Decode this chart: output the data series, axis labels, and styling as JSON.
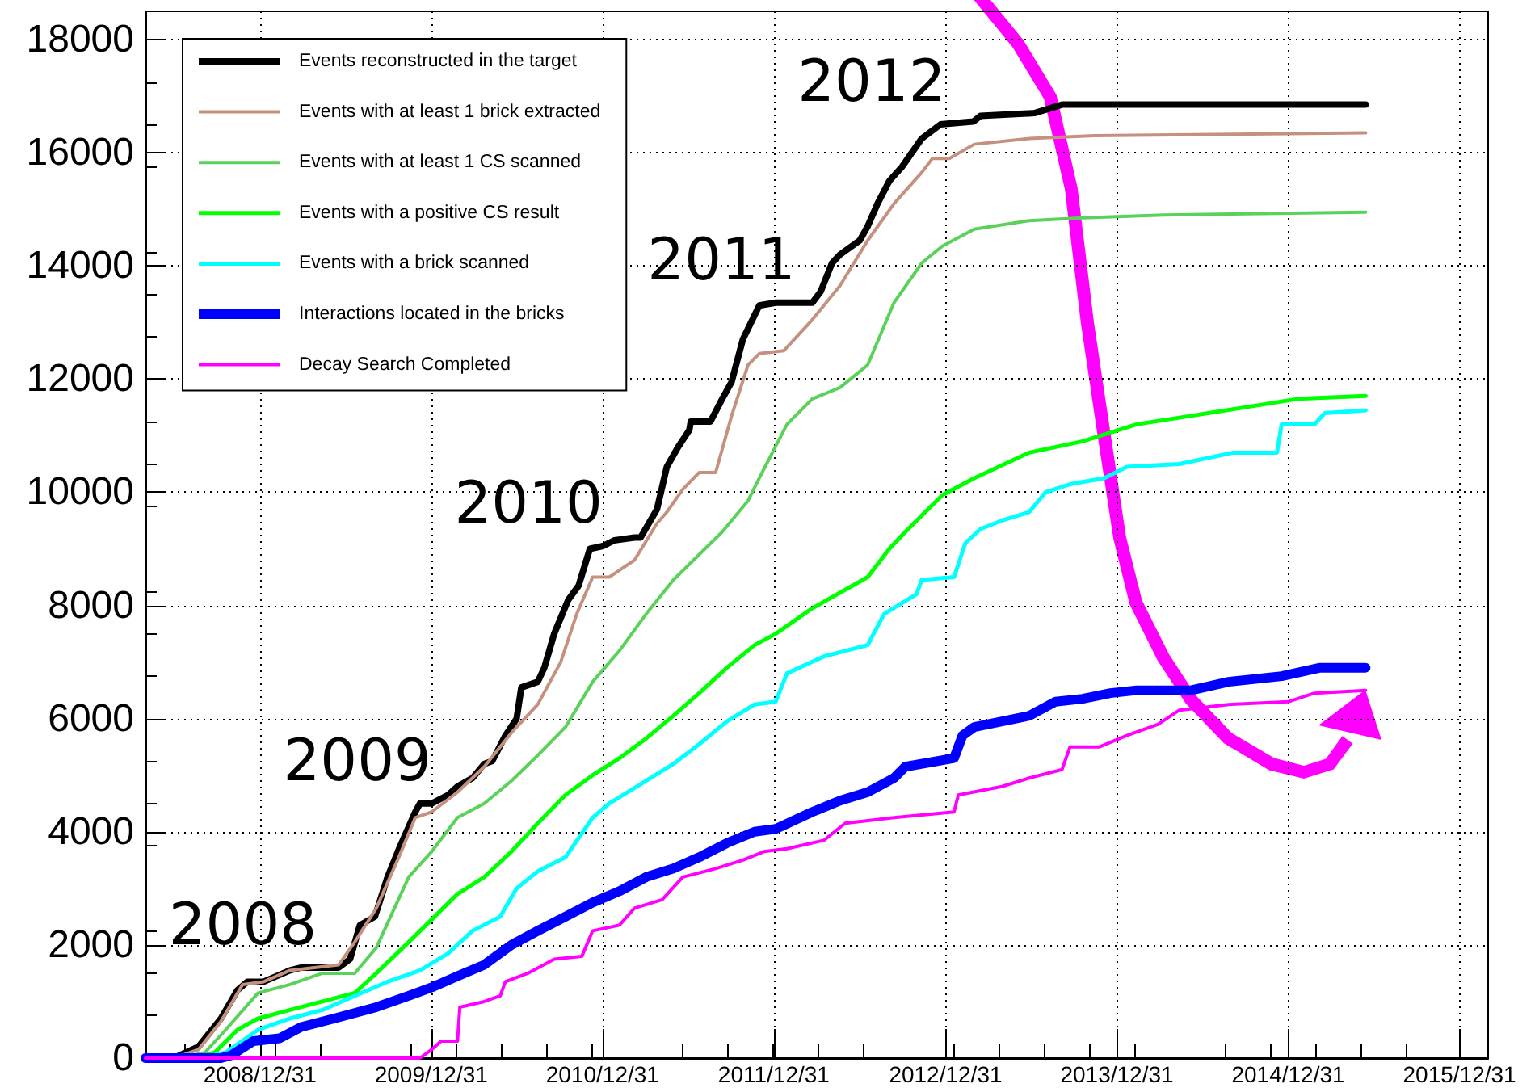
{
  "chart_data": {
    "type": "line",
    "xlim": [
      "2008-05-01",
      "2016-03-01"
    ],
    "xticks": [
      {
        "value": "2008-12-31",
        "label": "2008/12/31"
      },
      {
        "value": "2009-12-31",
        "label": "2009/12/31"
      },
      {
        "value": "2010-12-31",
        "label": "2010/12/31"
      },
      {
        "value": "2011-12-31",
        "label": "2011/12/31"
      },
      {
        "value": "2012-12-31",
        "label": "2012/12/31"
      },
      {
        "value": "2013-12-31",
        "label": "2013/12/31"
      },
      {
        "value": "2014-12-31",
        "label": "2014/12/31"
      },
      {
        "value": "2015-12-31",
        "label": "2015/12/31"
      }
    ],
    "ylim": [
      0,
      18500
    ],
    "yticks": [
      0,
      2000,
      4000,
      6000,
      8000,
      10000,
      12000,
      14000,
      16000,
      18000
    ],
    "grid": true,
    "legend": "top left",
    "annotations": [
      {
        "text": "2008",
        "x": "2009-05-01",
        "y": 1600
      },
      {
        "text": "2009",
        "x": "2009-12-31",
        "y": 4500
      },
      {
        "text": "2010",
        "x": "2010-12-31",
        "y": 9050
      },
      {
        "text": "2011",
        "x": "2012-02-15",
        "y": 13350
      },
      {
        "text": "2012",
        "x": "2012-12-31",
        "y": 16500
      }
    ],
    "series": [
      {
        "name": "Events reconstructed in the target",
        "color": "#000000",
        "x": [
          "2008-05-01",
          "2008-07-01",
          "2008-08-22",
          "2008-10-09",
          "2008-11-13",
          "2008-12-04",
          "2009-01-08",
          "2009-03-05",
          "2009-03-29",
          "2009-06-17",
          "2009-07-11",
          "2009-08-01",
          "2009-09-02",
          "2009-09-29",
          "2009-10-26",
          "2009-11-27",
          "2009-12-07",
          "2010-01-01",
          "2010-02-05",
          "2010-02-25",
          "2010-03-29",
          "2010-04-23",
          "2010-05-10",
          "2010-06-07",
          "2010-07-01",
          "2010-07-11",
          "2010-08-15",
          "2010-08-29",
          "2010-09-19",
          "2010-10-19",
          "2010-11-10",
          "2010-12-04",
          "2011-01-01",
          "2011-01-25",
          "2011-03-09",
          "2011-03-22",
          "2011-04-26",
          "2011-05-17",
          "2011-06-10",
          "2011-07-04",
          "2011-07-07",
          "2011-08-18",
          "2011-09-12",
          "2011-10-02",
          "2011-10-26",
          "2011-11-30",
          "2012-01-04",
          "2012-03-22",
          "2012-04-09",
          "2012-05-03",
          "2012-05-20",
          "2012-07-01",
          "2012-07-18",
          "2012-08-08",
          "2012-09-02",
          "2012-09-29",
          "2012-11-10",
          "2012-12-20",
          "2013-02-28",
          "2013-03-15",
          "2013-07-08",
          "2013-09-05",
          "2015-06-14"
        ],
        "values": [
          0,
          0,
          200,
          700,
          1200,
          1350,
          1350,
          1550,
          1600,
          1600,
          1750,
          2350,
          2500,
          3200,
          3750,
          4350,
          4500,
          4500,
          4650,
          4800,
          4950,
          5200,
          5250,
          5700,
          6000,
          6550,
          6650,
          6900,
          7500,
          8100,
          8350,
          9000,
          9050,
          9150,
          9200,
          9200,
          9700,
          10450,
          10800,
          11100,
          11250,
          11250,
          11650,
          11950,
          12700,
          13300,
          13350,
          13350,
          13550,
          14050,
          14200,
          14450,
          14700,
          15100,
          15500,
          15750,
          16250,
          16500,
          16550,
          16650,
          16700,
          16850,
          16850
        ]
      },
      {
        "name": "Events with at least 1 brick extracted",
        "color": "#c4917f",
        "x": [
          "2008-05-01",
          "2008-07-01",
          "2008-08-22",
          "2008-10-09",
          "2008-11-24",
          "2009-01-08",
          "2009-03-05",
          "2009-06-17",
          "2009-07-21",
          "2009-09-05",
          "2009-10-23",
          "2009-11-27",
          "2010-01-01",
          "2010-02-25",
          "2010-04-23",
          "2010-06-20",
          "2010-08-15",
          "2010-10-03",
          "2010-11-06",
          "2010-12-10",
          "2011-01-14",
          "2011-03-09",
          "2011-04-26",
          "2011-05-17",
          "2011-06-20",
          "2011-07-25",
          "2011-08-29",
          "2011-10-02",
          "2011-11-06",
          "2011-11-30",
          "2012-01-21",
          "2012-03-22",
          "2012-05-20",
          "2012-07-18",
          "2012-09-12",
          "2012-11-10",
          "2012-12-03",
          "2013-01-08",
          "2013-03-02",
          "2013-06-27",
          "2013-11-13",
          "2015-06-14"
        ],
        "values": [
          0,
          0,
          150,
          650,
          1300,
          1350,
          1550,
          1650,
          2050,
          2650,
          3550,
          4250,
          4350,
          4700,
          5150,
          5750,
          6250,
          7000,
          7850,
          8500,
          8500,
          8800,
          9450,
          9650,
          10050,
          10350,
          10350,
          11350,
          12250,
          12450,
          12500,
          13050,
          13650,
          14450,
          15100,
          15650,
          15900,
          15900,
          16150,
          16250,
          16300,
          16350
        ]
      },
      {
        "name": "Events with at least 1 CS scanned",
        "color": "#5ad25a",
        "x": [
          "2008-05-01",
          "2008-07-15",
          "2008-09-05",
          "2008-10-19",
          "2008-12-27",
          "2009-03-05",
          "2009-05-13",
          "2009-07-21",
          "2009-09-05",
          "2009-11-13",
          "2010-01-01",
          "2010-02-25",
          "2010-04-23",
          "2010-06-20",
          "2010-08-15",
          "2010-10-13",
          "2010-12-10",
          "2011-02-05",
          "2011-04-03",
          "2011-05-31",
          "2011-07-25",
          "2011-09-12",
          "2011-11-06",
          "2011-11-30",
          "2012-01-28",
          "2012-03-22",
          "2012-05-20",
          "2012-07-18",
          "2012-09-12",
          "2012-11-10",
          "2012-12-24",
          "2013-03-02",
          "2013-06-27",
          "2013-10-19",
          "2014-04-09",
          "2015-06-14"
        ],
        "values": [
          0,
          0,
          100,
          500,
          1150,
          1300,
          1500,
          1500,
          1950,
          3200,
          3650,
          4250,
          4500,
          4900,
          5350,
          5850,
          6650,
          7200,
          7850,
          8450,
          8900,
          9300,
          9850,
          10250,
          11200,
          11650,
          11850,
          12250,
          13350,
          14050,
          14350,
          14650,
          14800,
          14850,
          14900,
          14950
        ]
      },
      {
        "name": "Events with a positive CS result",
        "color": "#00ff00",
        "x": [
          "2008-05-01",
          "2008-08-11",
          "2008-09-26",
          "2008-11-13",
          "2008-12-27",
          "2009-03-05",
          "2009-05-13",
          "2009-07-21",
          "2009-09-05",
          "2009-11-13",
          "2010-01-01",
          "2010-02-25",
          "2010-04-23",
          "2010-06-20",
          "2010-08-15",
          "2010-10-13",
          "2010-12-10",
          "2011-02-05",
          "2011-04-03",
          "2011-05-31",
          "2011-07-25",
          "2011-09-22",
          "2011-11-20",
          "2012-01-04",
          "2012-03-22",
          "2012-07-18",
          "2012-09-02",
          "2012-10-06",
          "2012-12-24",
          "2013-03-02",
          "2013-06-27",
          "2013-10-19",
          "2014-02-11",
          "2014-06-07",
          "2014-09-29",
          "2015-01-21",
          "2015-06-14"
        ],
        "values": [
          0,
          0,
          100,
          500,
          700,
          850,
          1000,
          1150,
          1500,
          2050,
          2450,
          2900,
          3200,
          3650,
          4150,
          4650,
          5000,
          5300,
          5650,
          6050,
          6450,
          6900,
          7300,
          7500,
          7950,
          8500,
          9000,
          9300,
          9950,
          10250,
          10700,
          10900,
          11200,
          11350,
          11500,
          11650,
          11700
        ]
      },
      {
        "name": "Events with a brick scanned",
        "color": "#00ffff",
        "x": [
          "2008-05-01",
          "2008-08-29",
          "2008-10-19",
          "2008-12-27",
          "2009-03-05",
          "2009-05-13",
          "2009-07-21",
          "2009-09-29",
          "2009-12-07",
          "2010-02-05",
          "2010-03-29",
          "2010-05-27",
          "2010-07-01",
          "2010-08-15",
          "2010-10-13",
          "2010-12-10",
          "2011-01-14",
          "2011-04-03",
          "2011-05-31",
          "2011-07-25",
          "2011-09-22",
          "2011-11-20",
          "2012-01-04",
          "2012-01-28",
          "2012-04-16",
          "2012-07-18",
          "2012-08-22",
          "2012-10-30",
          "2012-11-10",
          "2013-01-18",
          "2013-02-11",
          "2013-03-15",
          "2013-04-30",
          "2013-06-27",
          "2013-08-01",
          "2013-09-26",
          "2013-12-04",
          "2014-01-21",
          "2014-05-13",
          "2014-09-05",
          "2014-12-07",
          "2014-12-17",
          "2015-02-25",
          "2015-03-19",
          "2015-06-14"
        ],
        "values": [
          0,
          0,
          100,
          500,
          700,
          850,
          1100,
          1350,
          1550,
          1850,
          2250,
          2500,
          3000,
          3300,
          3550,
          4250,
          4500,
          4900,
          5200,
          5550,
          5950,
          6250,
          6300,
          6800,
          7100,
          7300,
          7850,
          8200,
          8450,
          8500,
          9100,
          9350,
          9500,
          9650,
          10000,
          10150,
          10250,
          10450,
          10500,
          10700,
          10700,
          11200,
          11200,
          11400,
          11450
        ]
      },
      {
        "name": "Interactions located in the bricks",
        "color": "#0000ff",
        "x": [
          "2008-05-01",
          "2008-10-09",
          "2008-10-31",
          "2008-12-17",
          "2009-02-11",
          "2009-03-29",
          "2009-06-07",
          "2009-09-05",
          "2009-11-13",
          "2010-01-01",
          "2010-02-25",
          "2010-04-23",
          "2010-06-20",
          "2010-08-15",
          "2010-10-13",
          "2010-12-10",
          "2011-02-05",
          "2011-04-03",
          "2011-05-31",
          "2011-07-25",
          "2011-09-22",
          "2011-11-20",
          "2012-01-04",
          "2012-03-22",
          "2012-05-20",
          "2012-07-18",
          "2012-09-12",
          "2012-10-06",
          "2013-01-18",
          "2013-02-05",
          "2013-03-02",
          "2013-04-30",
          "2013-06-27",
          "2013-08-22",
          "2013-10-19",
          "2013-12-17",
          "2014-02-11",
          "2014-06-07",
          "2014-08-26",
          "2014-12-17",
          "2015-03-09",
          "2015-06-14"
        ],
        "values": [
          0,
          0,
          50,
          300,
          350,
          550,
          700,
          900,
          1100,
          1250,
          1450,
          1650,
          2000,
          2250,
          2500,
          2750,
          2950,
          3200,
          3350,
          3550,
          3800,
          4000,
          4050,
          4350,
          4550,
          4700,
          4950,
          5150,
          5300,
          5700,
          5850,
          5950,
          6050,
          6300,
          6350,
          6450,
          6500,
          6500,
          6650,
          6750,
          6900,
          6900
        ]
      },
      {
        "name": "Decay Search Completed",
        "color": "#ff00ff",
        "x": [
          "2008-05-01",
          "2009-12-07",
          "2010-01-01",
          "2010-01-21",
          "2010-02-25",
          "2010-03-02",
          "2010-04-23",
          "2010-05-27",
          "2010-06-07",
          "2010-07-25",
          "2010-09-19",
          "2010-11-17",
          "2010-12-10",
          "2011-02-05",
          "2011-03-09",
          "2011-05-07",
          "2011-06-20",
          "2011-08-29",
          "2011-10-26",
          "2011-12-10",
          "2012-01-28",
          "2012-04-16",
          "2012-05-31",
          "2012-09-12",
          "2013-01-18",
          "2013-01-27",
          "2013-04-30",
          "2013-06-27",
          "2013-09-05",
          "2013-09-22",
          "2013-11-24",
          "2014-01-21",
          "2014-03-29",
          "2014-05-13",
          "2014-08-26",
          "2015-01-01",
          "2015-02-25",
          "2015-06-14"
        ],
        "values": [
          0,
          0,
          150,
          300,
          300,
          900,
          1000,
          1100,
          1350,
          1500,
          1750,
          1800,
          2250,
          2350,
          2650,
          2800,
          3200,
          3350,
          3500,
          3650,
          3700,
          3850,
          4150,
          4250,
          4350,
          4650,
          4800,
          4950,
          5100,
          5500,
          5500,
          5700,
          5900,
          6150,
          6250,
          6300,
          6450,
          6500
        ]
      }
    ]
  }
}
